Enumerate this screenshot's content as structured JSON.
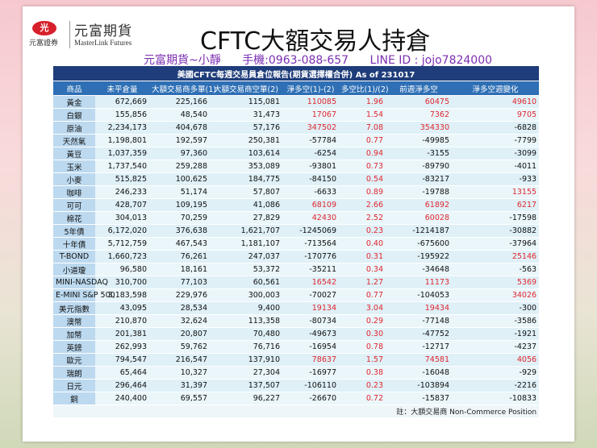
{
  "header": {
    "logo_mark": "光",
    "logo_sub": "元富證券",
    "company": "元富期貨",
    "company_en": "MasterLink Futures",
    "title": "CFTC大額交易人持倉",
    "contact_name": "元富期貨~小靜",
    "contact_phone": "手機:0963-088-657",
    "contact_line": "LINE ID : jojo7824000"
  },
  "table": {
    "caption": "美國CFTC每週交易員倉位報告(期貨選擇權合併) As of  231017",
    "columns": [
      "商品",
      "未平倉量",
      "大額交易商多單(1)",
      "大額交易商空單(2)",
      "淨多空(1)-(2)",
      "多空比(1)/(2)",
      "前週淨多空",
      "淨多空週變化"
    ],
    "rows": [
      [
        "黃金",
        "672,669",
        "225,166",
        "115,081",
        "110085",
        "1.96",
        "60475",
        "49610"
      ],
      [
        "白銀",
        "155,856",
        "48,540",
        "31,473",
        "17067",
        "1.54",
        "7362",
        "9705"
      ],
      [
        "原油",
        "2,234,173",
        "404,678",
        "57,176",
        "347502",
        "7.08",
        "354330",
        "-6828"
      ],
      [
        "天然氣",
        "1,198,801",
        "192,597",
        "250,381",
        "-57784",
        "0.77",
        "-49985",
        "-7799"
      ],
      [
        "黃豆",
        "1,037,359",
        "97,360",
        "103,614",
        "-6254",
        "0.94",
        "-3155",
        "-3099"
      ],
      [
        "玉米",
        "1,737,540",
        "259,288",
        "353,089",
        "-93801",
        "0.73",
        "-89790",
        "-4011"
      ],
      [
        "小麥",
        "515,825",
        "100,625",
        "184,775",
        "-84150",
        "0.54",
        "-83217",
        "-933"
      ],
      [
        "咖啡",
        "246,233",
        "51,174",
        "57,807",
        "-6633",
        "0.89",
        "-19788",
        "13155"
      ],
      [
        "可可",
        "428,707",
        "109,195",
        "41,086",
        "68109",
        "2.66",
        "61892",
        "6217"
      ],
      [
        "棉花",
        "304,013",
        "70,259",
        "27,829",
        "42430",
        "2.52",
        "60028",
        "-17598"
      ],
      [
        "5年債",
        "6,172,020",
        "376,638",
        "1,621,707",
        "-1245069",
        "0.23",
        "-1214187",
        "-30882"
      ],
      [
        "十年債",
        "5,712,759",
        "467,543",
        "1,181,107",
        "-713564",
        "0.40",
        "-675600",
        "-37964"
      ],
      [
        "T-BOND",
        "1,660,723",
        "76,261",
        "247,037",
        "-170776",
        "0.31",
        "-195922",
        "25146"
      ],
      [
        "小道瓊",
        "96,580",
        "18,161",
        "53,372",
        "-35211",
        "0.34",
        "-34648",
        "-563"
      ],
      [
        "MINI-NASDAQ",
        "310,700",
        "77,103",
        "60,561",
        "16542",
        "1.27",
        "11173",
        "5369"
      ],
      [
        "E-MINI S&P 500",
        "3,183,598",
        "229,976",
        "300,003",
        "-70027",
        "0.77",
        "-104053",
        "34026"
      ],
      [
        "美元指數",
        "43,095",
        "28,534",
        "9,400",
        "19134",
        "3.04",
        "19434",
        "-300"
      ],
      [
        "澳幣",
        "210,870",
        "32,624",
        "113,358",
        "-80734",
        "0.29",
        "-77148",
        "-3586"
      ],
      [
        "加幣",
        "201,381",
        "20,807",
        "70,480",
        "-49673",
        "0.30",
        "-47752",
        "-1921"
      ],
      [
        "英鎊",
        "262,993",
        "59,762",
        "76,716",
        "-16954",
        "0.78",
        "-12717",
        "-4237"
      ],
      [
        "歐元",
        "794,547",
        "216,547",
        "137,910",
        "78637",
        "1.57",
        "74581",
        "4056"
      ],
      [
        "瑞朗",
        "65,464",
        "10,327",
        "27,304",
        "-16977",
        "0.38",
        "-16048",
        "-929"
      ],
      [
        "日元",
        "296,464",
        "31,397",
        "137,507",
        "-106110",
        "0.23",
        "-103894",
        "-2216"
      ],
      [
        "銅",
        "240,400",
        "69,557",
        "96,227",
        "-26670",
        "0.72",
        "-15837",
        "-10833"
      ]
    ],
    "note": "註：大額交易商 Non-Commerce Position"
  }
}
